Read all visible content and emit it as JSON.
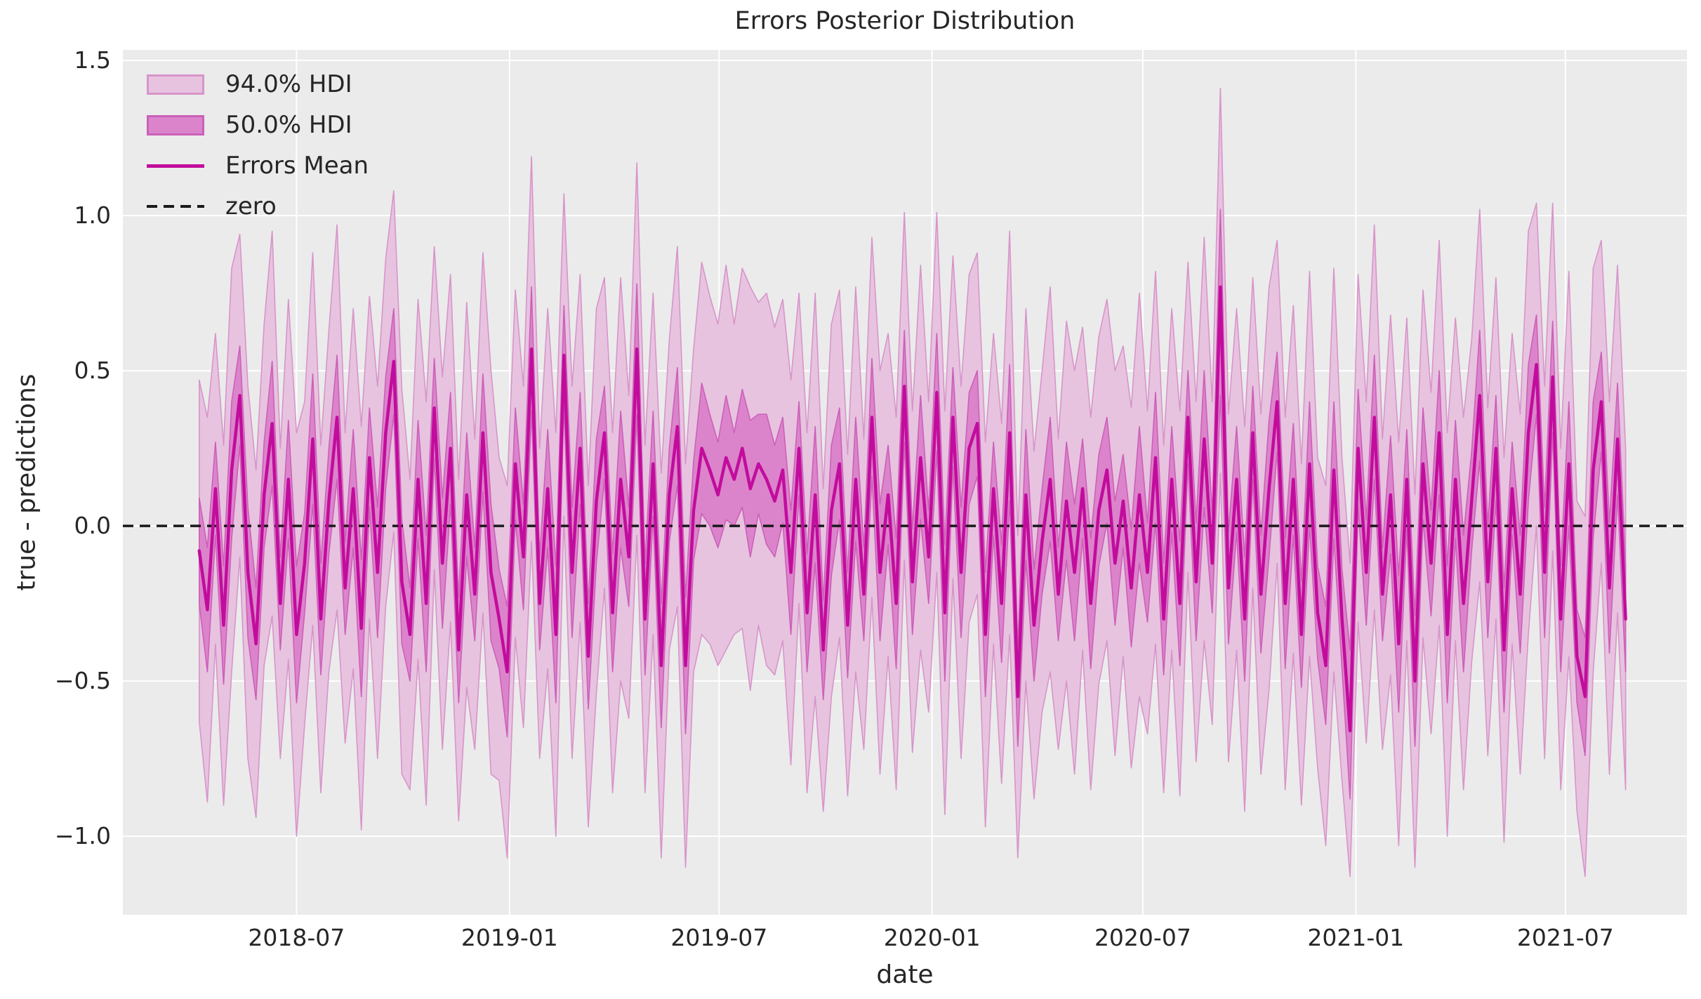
{
  "colors": {
    "plot_bg": "#ebebeb",
    "grid": "#ffffff",
    "text": "#262626",
    "hdi94_fill": "#e7c3e0",
    "hdi94_edge": "#d795c9",
    "hdi50_fill": "#db84cb",
    "hdi50_edge": "#cc60b8",
    "mean_line": "#c20c9d",
    "zero_line": "#1a1a1a"
  },
  "legend": {
    "items": [
      {
        "label": "94.0% HDI",
        "swatch": "band-light"
      },
      {
        "label": "50.0% HDI",
        "swatch": "band-dark"
      },
      {
        "label": "Errors Mean",
        "swatch": "solid-line"
      },
      {
        "label": "zero",
        "swatch": "dashed-line"
      }
    ],
    "position": "upper left"
  },
  "chart_data": {
    "type": "line",
    "title": "Errors Posterior Distribution",
    "xlabel": "date",
    "ylabel": "true - predictions",
    "grid": true,
    "legend_position": "upper left",
    "xlim": [
      "2018-02-01",
      "2021-10-14"
    ],
    "ylim": [
      -1.253,
      1.534
    ],
    "x_ticks": [
      {
        "label": "2018-07",
        "date": "2018-07-01"
      },
      {
        "label": "2019-01",
        "date": "2019-01-01"
      },
      {
        "label": "2019-07",
        "date": "2019-07-01"
      },
      {
        "label": "2020-01",
        "date": "2020-01-01"
      },
      {
        "label": "2020-07",
        "date": "2020-07-01"
      },
      {
        "label": "2021-01",
        "date": "2021-01-01"
      },
      {
        "label": "2021-07",
        "date": "2021-07-01"
      }
    ],
    "y_ticks": [
      {
        "label": "1.5",
        "value": 1.5
      },
      {
        "label": "1.0",
        "value": 1.0
      },
      {
        "label": "0.5",
        "value": 0.5
      },
      {
        "label": "0.0",
        "value": 0.0
      },
      {
        "label": "−0.5",
        "value": -0.5
      },
      {
        "label": "−1.0",
        "value": -1.0
      }
    ],
    "zero_reference": 0.0,
    "x_start": "2018-04-08",
    "x_step_days": 7,
    "n_points": 177,
    "series": {
      "mean": [
        -0.08,
        -0.27,
        0.12,
        -0.32,
        0.18,
        0.42,
        -0.15,
        -0.38,
        0.1,
        0.33,
        -0.25,
        0.15,
        -0.35,
        -0.12,
        0.28,
        -0.3,
        0.08,
        0.35,
        -0.2,
        0.12,
        -0.33,
        0.22,
        -0.15,
        0.3,
        0.53,
        -0.18,
        -0.35,
        0.15,
        -0.25,
        0.38,
        -0.12,
        0.25,
        -0.4,
        0.1,
        -0.22,
        0.3,
        -0.15,
        -0.3,
        -0.47,
        0.2,
        -0.1,
        0.57,
        -0.25,
        0.12,
        -0.35,
        0.55,
        -0.15,
        0.25,
        -0.42,
        0.08,
        0.3,
        -0.28,
        0.15,
        -0.1,
        0.57,
        -0.3,
        0.2,
        -0.45,
        0.1,
        0.32,
        -0.45,
        0.05,
        0.25,
        0.18,
        0.1,
        0.22,
        0.15,
        0.25,
        0.12,
        0.2,
        0.15,
        0.08,
        0.18,
        -0.15,
        0.25,
        -0.28,
        0.1,
        -0.4,
        0.05,
        0.2,
        -0.32,
        0.15,
        -0.22,
        0.35,
        -0.15,
        0.1,
        -0.25,
        0.45,
        -0.18,
        0.22,
        -0.1,
        0.43,
        -0.28,
        0.35,
        -0.15,
        0.25,
        0.33,
        -0.35,
        0.12,
        -0.25,
        0.3,
        -0.55,
        0.1,
        -0.32,
        -0.05,
        0.15,
        -0.22,
        0.08,
        -0.15,
        0.12,
        -0.25,
        0.05,
        0.18,
        -0.12,
        0.08,
        -0.2,
        0.1,
        -0.15,
        0.22,
        -0.3,
        0.15,
        -0.25,
        0.35,
        -0.18,
        0.28,
        -0.12,
        0.77,
        -0.2,
        0.15,
        -0.3,
        0.3,
        -0.22,
        0.12,
        0.4,
        -0.25,
        0.15,
        -0.35,
        0.2,
        -0.28,
        -0.45,
        0.18,
        -0.3,
        -0.66,
        0.25,
        -0.15,
        0.35,
        -0.22,
        0.1,
        -0.38,
        0.15,
        -0.5,
        0.2,
        -0.12,
        0.3,
        -0.35,
        0.15,
        -0.25,
        0.08,
        0.42,
        -0.18,
        0.25,
        -0.4,
        0.12,
        -0.22,
        0.3,
        0.52,
        -0.15,
        0.48,
        -0.3,
        0.2,
        -0.42,
        -0.55,
        0.18,
        0.4,
        -0.2,
        0.28,
        -0.3
      ],
      "hdi94_lower": [
        -0.63,
        -0.89,
        -0.38,
        -0.9,
        -0.47,
        -0.1,
        -0.75,
        -0.94,
        -0.45,
        -0.29,
        -0.75,
        -0.43,
        -1.0,
        -0.64,
        -0.32,
        -0.86,
        -0.47,
        -0.27,
        -0.7,
        -0.46,
        -0.98,
        -0.3,
        -0.75,
        -0.26,
        -0.02,
        -0.8,
        -0.85,
        -0.43,
        -0.9,
        -0.14,
        -0.72,
        -0.31,
        -0.95,
        -0.52,
        -0.72,
        -0.28,
        -0.8,
        -0.82,
        -1.07,
        -0.36,
        -0.65,
        -0.05,
        -0.75,
        -0.46,
        -1.0,
        0.03,
        -0.75,
        -0.31,
        -0.97,
        -0.54,
        -0.2,
        -0.86,
        -0.5,
        -0.62,
        -0.03,
        -0.86,
        -0.35,
        -1.07,
        -0.4,
        -0.26,
        -1.1,
        -0.47,
        -0.35,
        -0.38,
        -0.45,
        -0.4,
        -0.35,
        -0.33,
        -0.53,
        -0.32,
        -0.45,
        -0.48,
        -0.37,
        -0.77,
        -0.25,
        -0.86,
        -0.55,
        -0.92,
        -0.55,
        -0.36,
        -0.87,
        -0.47,
        -0.72,
        -0.23,
        -0.8,
        -0.42,
        -0.85,
        -0.11,
        -0.73,
        -0.4,
        -0.6,
        -0.15,
        -0.93,
        -0.17,
        -0.75,
        -0.31,
        -0.22,
        -0.97,
        -0.38,
        -0.83,
        -0.35,
        -1.07,
        -0.5,
        -0.88,
        -0.6,
        -0.47,
        -0.72,
        -0.5,
        -0.8,
        -0.4,
        -0.85,
        -0.51,
        -0.37,
        -0.74,
        -0.42,
        -0.78,
        -0.55,
        -0.67,
        -0.38,
        -0.86,
        -0.4,
        -0.87,
        -0.15,
        -0.76,
        -0.37,
        -0.64,
        0.17,
        -0.76,
        -0.4,
        -0.92,
        -0.2,
        -0.8,
        -0.53,
        -0.12,
        -0.85,
        -0.41,
        -0.9,
        -0.42,
        -0.78,
        -1.03,
        -0.47,
        -0.82,
        -1.13,
        -0.31,
        -0.7,
        -0.27,
        -0.72,
        -0.48,
        -1.03,
        -0.37,
        -1.1,
        -0.36,
        -0.67,
        -0.32,
        -1.0,
        -0.37,
        -0.85,
        -0.44,
        -0.18,
        -0.74,
        -0.3,
        -1.02,
        -0.38,
        -0.8,
        -0.35,
        0.0,
        -0.75,
        -0.08,
        -0.85,
        -0.42,
        -0.92,
        -1.13,
        -0.47,
        -0.12,
        -0.8,
        -0.28,
        -0.85
      ],
      "hdi94_upper": [
        0.47,
        0.35,
        0.62,
        0.26,
        0.83,
        0.94,
        0.45,
        0.18,
        0.65,
        0.95,
        0.25,
        0.73,
        0.3,
        0.4,
        0.88,
        0.26,
        0.63,
        0.97,
        0.3,
        0.7,
        0.32,
        0.74,
        0.45,
        0.86,
        1.08,
        0.44,
        0.15,
        0.73,
        0.4,
        0.9,
        0.48,
        0.81,
        0.15,
        0.72,
        0.28,
        0.88,
        0.5,
        0.22,
        0.13,
        0.76,
        0.45,
        1.19,
        0.25,
        0.7,
        0.3,
        1.07,
        0.45,
        0.81,
        0.13,
        0.7,
        0.8,
        0.3,
        0.8,
        0.42,
        1.17,
        0.26,
        0.75,
        0.17,
        0.6,
        0.9,
        0.2,
        0.57,
        0.85,
        0.74,
        0.65,
        0.84,
        0.65,
        0.83,
        0.77,
        0.72,
        0.75,
        0.64,
        0.73,
        0.47,
        0.75,
        0.3,
        0.75,
        0.12,
        0.65,
        0.76,
        0.23,
        0.77,
        0.28,
        0.93,
        0.5,
        0.62,
        0.35,
        1.01,
        0.37,
        0.84,
        0.4,
        1.01,
        0.37,
        0.87,
        0.45,
        0.81,
        0.88,
        0.27,
        0.62,
        0.33,
        0.95,
        -0.03,
        0.7,
        0.24,
        0.5,
        0.77,
        0.28,
        0.66,
        0.5,
        0.64,
        0.35,
        0.61,
        0.73,
        0.5,
        0.58,
        0.38,
        0.75,
        0.37,
        0.82,
        0.26,
        0.7,
        0.37,
        0.85,
        0.4,
        0.93,
        0.4,
        1.41,
        0.36,
        0.7,
        0.32,
        0.8,
        0.36,
        0.77,
        0.92,
        0.35,
        0.71,
        0.2,
        0.82,
        0.22,
        0.13,
        0.83,
        0.22,
        -0.12,
        0.81,
        0.4,
        0.97,
        0.28,
        0.68,
        0.27,
        0.67,
        0.1,
        0.76,
        0.43,
        0.92,
        0.3,
        0.67,
        0.35,
        0.6,
        1.02,
        0.38,
        0.8,
        0.22,
        0.62,
        0.36,
        0.95,
        1.04,
        0.45,
        1.04,
        0.25,
        0.82,
        0.08,
        0.03,
        0.83,
        0.92,
        0.4,
        0.84,
        0.25
      ],
      "hdi50_lower": [
        -0.25,
        -0.47,
        -0.03,
        -0.51,
        -0.04,
        0.26,
        -0.36,
        -0.56,
        -0.07,
        0.13,
        -0.4,
        -0.04,
        -0.57,
        -0.28,
        0.07,
        -0.48,
        -0.09,
        0.15,
        -0.35,
        -0.07,
        -0.55,
        0.06,
        -0.36,
        0.12,
        0.36,
        -0.38,
        -0.5,
        -0.04,
        -0.47,
        0.22,
        -0.33,
        0.07,
        -0.57,
        -0.1,
        -0.37,
        0.11,
        -0.37,
        -0.46,
        -0.68,
        0.02,
        -0.27,
        0.37,
        -0.4,
        -0.07,
        -0.57,
        0.39,
        -0.36,
        0.07,
        -0.59,
        -0.12,
        0.15,
        -0.47,
        -0.07,
        -0.26,
        0.36,
        -0.48,
        0.03,
        -0.65,
        -0.05,
        0.13,
        -0.67,
        -0.11,
        0.04,
        0.0,
        -0.07,
        0.02,
        0.0,
        0.06,
        -0.1,
        0.04,
        -0.06,
        -0.1,
        0.01,
        -0.35,
        0.1,
        -0.47,
        -0.12,
        -0.56,
        -0.16,
        0.02,
        -0.49,
        -0.05,
        -0.37,
        0.16,
        -0.37,
        -0.06,
        -0.46,
        0.27,
        -0.35,
        0.02,
        -0.25,
        0.24,
        -0.5,
        0.19,
        -0.36,
        0.07,
        0.16,
        -0.55,
        -0.03,
        -0.44,
        0.08,
        -0.71,
        -0.11,
        -0.5,
        -0.22,
        -0.05,
        -0.37,
        -0.11,
        -0.37,
        -0.04,
        -0.46,
        -0.13,
        0.01,
        -0.32,
        -0.07,
        -0.39,
        -0.12,
        -0.31,
        0.01,
        -0.48,
        -0.02,
        -0.45,
        0.2,
        -0.37,
        0.06,
        -0.28,
        0.42,
        -0.38,
        -0.02,
        -0.5,
        0.15,
        -0.41,
        -0.1,
        0.24,
        -0.46,
        -0.03,
        -0.52,
        0.0,
        -0.43,
        -0.64,
        -0.04,
        -0.46,
        -0.88,
        0.06,
        -0.32,
        0.15,
        -0.37,
        -0.09,
        -0.6,
        -0.01,
        -0.71,
        0.02,
        -0.29,
        0.1,
        -0.57,
        -0.04,
        -0.47,
        -0.08,
        0.21,
        -0.36,
        0.08,
        -0.6,
        -0.03,
        -0.41,
        0.08,
        0.36,
        -0.36,
        0.3,
        -0.47,
        0.0,
        -0.57,
        -0.74,
        -0.04,
        0.24,
        -0.41,
        0.1,
        -0.47
      ],
      "hdi50_upper": [
        0.09,
        -0.07,
        0.27,
        -0.13,
        0.4,
        0.58,
        0.06,
        -0.2,
        0.27,
        0.53,
        -0.1,
        0.34,
        -0.13,
        0.04,
        0.49,
        -0.12,
        0.25,
        0.55,
        -0.05,
        0.31,
        -0.11,
        0.38,
        0.06,
        0.48,
        0.7,
        0.02,
        -0.2,
        0.34,
        -0.03,
        0.54,
        0.09,
        0.43,
        -0.23,
        0.3,
        -0.07,
        0.49,
        0.07,
        -0.14,
        -0.26,
        0.38,
        0.07,
        0.77,
        -0.1,
        0.31,
        -0.13,
        0.71,
        0.06,
        0.43,
        -0.25,
        0.28,
        0.45,
        -0.09,
        0.37,
        0.06,
        0.78,
        -0.12,
        0.37,
        -0.25,
        0.25,
        0.51,
        -0.23,
        0.21,
        0.46,
        0.36,
        0.27,
        0.42,
        0.3,
        0.44,
        0.34,
        0.36,
        0.36,
        0.26,
        0.35,
        0.05,
        0.4,
        -0.09,
        0.32,
        -0.24,
        0.26,
        0.38,
        -0.15,
        0.35,
        -0.07,
        0.54,
        0.07,
        0.26,
        -0.04,
        0.63,
        -0.01,
        0.42,
        0.05,
        0.62,
        -0.06,
        0.51,
        0.06,
        0.43,
        0.5,
        -0.15,
        0.27,
        -0.06,
        0.52,
        -0.39,
        0.31,
        -0.14,
        0.12,
        0.35,
        -0.07,
        0.27,
        0.07,
        0.28,
        -0.04,
        0.23,
        0.35,
        0.08,
        0.23,
        -0.01,
        0.32,
        0.01,
        0.43,
        -0.12,
        0.32,
        -0.05,
        0.5,
        0.01,
        0.5,
        0.04,
        1.02,
        -0.02,
        0.32,
        -0.1,
        0.45,
        -0.03,
        0.34,
        0.56,
        -0.04,
        0.33,
        -0.18,
        0.4,
        -0.13,
        -0.26,
        0.4,
        -0.14,
        -0.4,
        0.44,
        0.02,
        0.55,
        -0.07,
        0.29,
        -0.16,
        0.31,
        -0.29,
        0.38,
        0.05,
        0.5,
        -0.13,
        0.34,
        -0.03,
        0.24,
        0.63,
        0.0,
        0.42,
        -0.2,
        0.27,
        -0.03,
        0.52,
        0.68,
        0.06,
        0.66,
        -0.13,
        0.4,
        -0.27,
        -0.36,
        0.4,
        0.56,
        0.01,
        0.46,
        -0.13
      ]
    }
  }
}
